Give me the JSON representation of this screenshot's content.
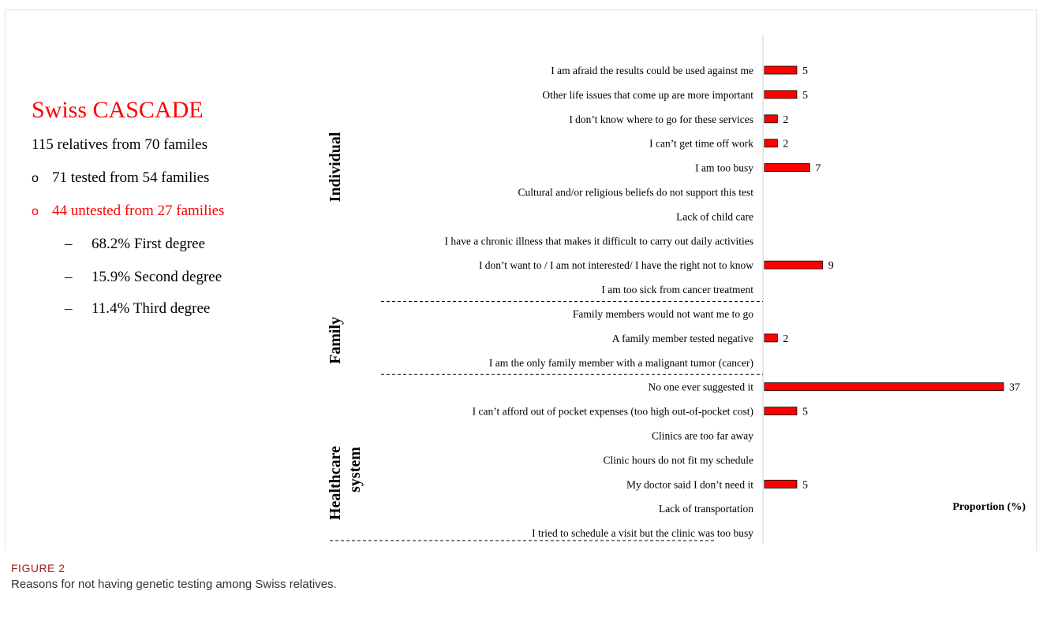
{
  "colors": {
    "accent": "#ff0000",
    "bar": "#ff0000",
    "bar_outline": "#000000",
    "caption_label": "#9c2424"
  },
  "panel": {
    "title": "Swiss CASCADE",
    "total": "115 relatives from 70 familes",
    "tested": "71 tested from 54 families",
    "untested": "44 untested from 27 families",
    "first_degree": "68.2%  First degree",
    "second_degree": "15.9% Second  degree",
    "third_degree": "11.4% Third degree",
    "bullet": "o",
    "dash": "–"
  },
  "chart_data": {
    "type": "bar",
    "orientation": "horizontal",
    "xlabel": "Proportion (%)",
    "groups": [
      {
        "name": "Individual",
        "start": 0,
        "end": 9
      },
      {
        "name": "Family",
        "start": 10,
        "end": 12
      },
      {
        "name": "Healthcare system",
        "start": 13,
        "end": 19
      }
    ],
    "categories": [
      "I am afraid the results could be used against me",
      "Other life issues that come up are more important",
      "I don’t know where to go for these services",
      "I can’t get time off work",
      "I am too busy",
      "Cultural and/or religious beliefs do not support this test",
      "Lack of child care",
      "I have a chronic illness that makes it difficult to carry out daily activities",
      "I don’t want to / I am not interested/ I have the right not to know",
      "I am too sick from cancer treatment",
      "Family members would not want me to go",
      "A family member tested negative",
      "I am the only family member with a malignant tumor (cancer)",
      "No one ever suggested it",
      "I can’t afford out of pocket expenses (too high  out-of-pocket cost)",
      "Clinics are too far away",
      "Clinic hours do not fit my schedule",
      "My doctor said I don’t need it",
      "Lack of transportation",
      "I tried to schedule a visit but the clinic was too busy"
    ],
    "values": [
      5,
      5,
      2,
      2,
      7,
      null,
      null,
      null,
      9,
      null,
      null,
      2,
      null,
      37,
      5,
      null,
      null,
      5,
      null,
      null
    ],
    "xlim": [
      0,
      37
    ],
    "grid": false,
    "legend": "none"
  },
  "caption": {
    "label": "FIGURE 2",
    "text": "Reasons for not having genetic testing among Swiss relatives."
  }
}
